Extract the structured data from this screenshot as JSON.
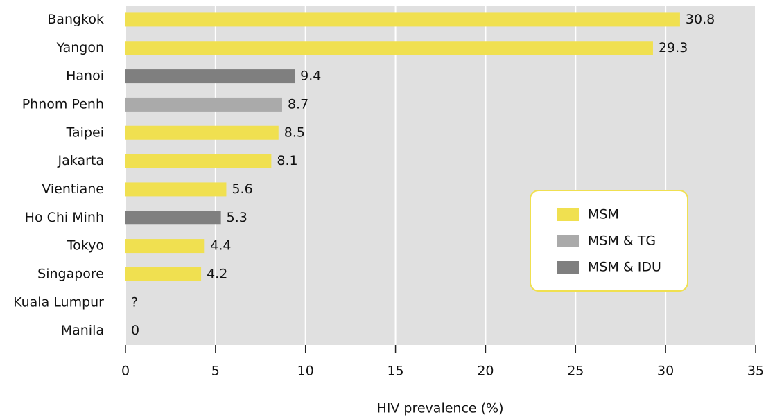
{
  "chart_data": {
    "type": "hbar",
    "x_label": "HIV prevalence (%)",
    "categories": [
      "Bangkok",
      "Yangon",
      "Hanoi",
      "Phnom Penh",
      "Taipei",
      "Jakarta",
      "Vientiane",
      "Ho Chi Minh",
      "Tokyo",
      "Singapore",
      "Kuala Lumpur",
      "Manila"
    ],
    "series": [
      {
        "name": "MSM",
        "color": "#f0e050",
        "values": [
          30.8,
          29.3,
          null,
          null,
          8.5,
          8.1,
          5.6,
          null,
          4.4,
          4.2,
          null,
          0
        ],
        "value_labels": [
          null,
          null,
          null,
          null,
          null,
          null,
          null,
          null,
          null,
          null,
          "?",
          null
        ]
      },
      {
        "name": "MSM & TG",
        "color": "#aaaaaa",
        "values": [
          null,
          null,
          null,
          8.7,
          null,
          null,
          null,
          null,
          null,
          null,
          null,
          null
        ]
      },
      {
        "name": "MSM & IDU",
        "color": "#7f7f7f",
        "values": [
          null,
          null,
          9.4,
          null,
          null,
          null,
          null,
          5.3,
          null,
          null,
          null,
          null
        ]
      }
    ],
    "xlim": [
      0,
      35
    ],
    "xticks": [
      0,
      5,
      10,
      15,
      20,
      25,
      30,
      35
    ],
    "grid": true,
    "legend": "right"
  }
}
